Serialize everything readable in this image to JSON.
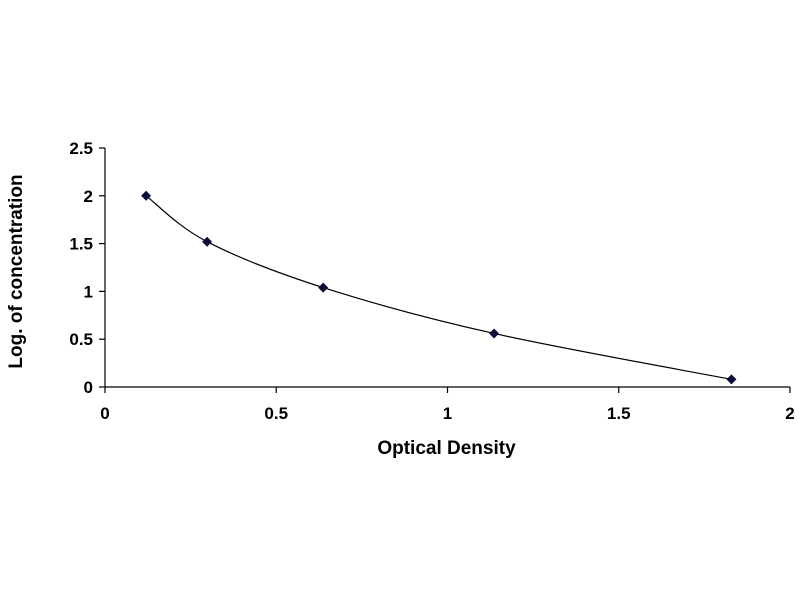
{
  "chart_data": {
    "type": "scatter",
    "title": "",
    "xlabel": "Optical Density",
    "ylabel": "Log. of concentration",
    "xlim": [
      0,
      2
    ],
    "ylim": [
      0,
      2.5
    ],
    "x_ticks": [
      "0",
      "0.5",
      "1",
      "1.5",
      "2"
    ],
    "y_ticks": [
      "0",
      "0.5",
      "1",
      "1.5",
      "2",
      "2.5"
    ],
    "grid": false,
    "legend": "none",
    "series": [
      {
        "x": [
          0.12,
          0.298,
          0.637,
          1.136,
          1.829
        ],
        "y": [
          2.0,
          1.52,
          1.04,
          0.56,
          0.08
        ],
        "marker": "diamond",
        "fit_line": "smooth",
        "color": "#0d0d3a"
      }
    ],
    "axis_color": "#000000",
    "curve_color": "#000000"
  }
}
